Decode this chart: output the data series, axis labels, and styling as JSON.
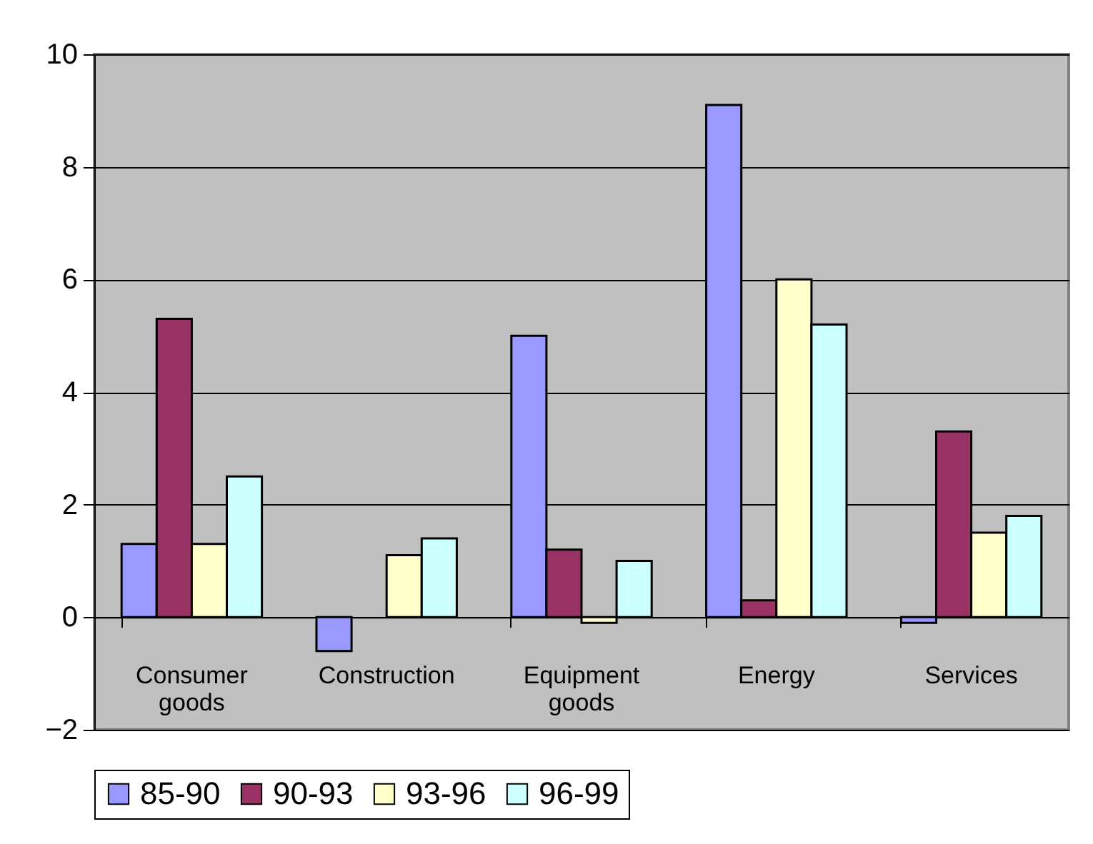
{
  "chart_data": {
    "type": "bar",
    "categories": [
      "Consumer goods",
      "Construction",
      "Equipment goods",
      "Energy",
      "Services"
    ],
    "series": [
      {
        "name": "85-90",
        "color": "#9999ff",
        "values": [
          1.3,
          -0.6,
          5.0,
          9.1,
          -0.1
        ]
      },
      {
        "name": "90-93",
        "color": "#993366",
        "values": [
          5.3,
          null,
          1.2,
          0.3,
          3.3
        ]
      },
      {
        "name": "93-96",
        "color": "#ffffcc",
        "values": [
          1.3,
          1.1,
          -0.1,
          6.0,
          1.5
        ]
      },
      {
        "name": "96-99",
        "color": "#ccffff",
        "values": [
          2.5,
          1.4,
          1.0,
          5.2,
          1.8
        ]
      }
    ],
    "ylim": [
      -2,
      10
    ],
    "yticks": [
      -2,
      0,
      2,
      4,
      6,
      8,
      10
    ],
    "grid": "y",
    "legend": "bottom"
  }
}
